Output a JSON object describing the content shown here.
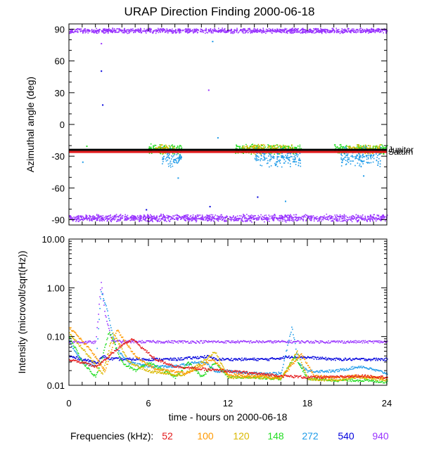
{
  "figure": {
    "title": "URAP Direction Finding  2000-06-18",
    "xlabel": "time - hours on 2000-06-18",
    "legend_label": "Frequencies (kHz):",
    "frequencies": [
      {
        "label": "52",
        "color": "#e41a1c"
      },
      {
        "label": "100",
        "color": "#ff9900"
      },
      {
        "label": "120",
        "color": "#d9b800"
      },
      {
        "label": "148",
        "color": "#22dd22"
      },
      {
        "label": "272",
        "color": "#1e9be8"
      },
      {
        "label": "540",
        "color": "#0000dd"
      },
      {
        "label": "940",
        "color": "#9933ff"
      }
    ]
  },
  "chart_data": [
    {
      "type": "scatter",
      "name": "azimuth",
      "ylabel": "Azimuthal angle (deg)",
      "xlim": [
        0,
        24
      ],
      "ylim": [
        -95,
        95
      ],
      "xticks": [
        0,
        6,
        12,
        18,
        24
      ],
      "yticks": [
        90,
        60,
        30,
        0,
        -30,
        -60,
        -90
      ],
      "reference_lines": [
        {
          "label": "Jupiter",
          "y": -24,
          "color": "#000000"
        },
        {
          "label": "Saturn",
          "y": -26,
          "color": "#e41a1c"
        }
      ],
      "bands": [
        {
          "freq": "940",
          "y_center": 89,
          "y_spread": 2,
          "x_ranges": [
            [
              0,
              24
            ]
          ]
        },
        {
          "freq": "940",
          "y_center": -88,
          "y_spread": 3,
          "x_ranges": [
            [
              0,
              24
            ]
          ]
        },
        {
          "freq": "148",
          "y_center": -23,
          "y_spread": 4,
          "x_ranges": [
            [
              6,
              8.5
            ],
            [
              12.5,
              17.5
            ],
            [
              20,
              24
            ]
          ]
        },
        {
          "freq": "120",
          "y_center": -23,
          "y_spread": 4,
          "x_ranges": [
            [
              6.5,
              8
            ],
            [
              13,
              17
            ],
            [
              21,
              23.5
            ]
          ]
        },
        {
          "freq": "272",
          "y_center": -30,
          "y_spread": 8,
          "x_ranges": [
            [
              7,
              8.5
            ],
            [
              14,
              17.5
            ],
            [
              20.5,
              23.5
            ]
          ]
        }
      ],
      "outliers": [
        {
          "freq": "940",
          "x": 2.4,
          "y": 77
        },
        {
          "freq": "540",
          "x": 2.4,
          "y": 51
        },
        {
          "freq": "540",
          "x": 2.5,
          "y": 19
        },
        {
          "freq": "940",
          "x": 10.5,
          "y": 33
        },
        {
          "freq": "272",
          "x": 10.8,
          "y": 79
        },
        {
          "freq": "148",
          "x": 1.3,
          "y": -20
        },
        {
          "freq": "272",
          "x": 1.0,
          "y": -35
        },
        {
          "freq": "272",
          "x": 8.2,
          "y": -50
        },
        {
          "freq": "540",
          "x": 5.8,
          "y": -80
        },
        {
          "freq": "272",
          "x": 16.3,
          "y": -72
        },
        {
          "freq": "540",
          "x": 14.2,
          "y": -68
        },
        {
          "freq": "540",
          "x": 10.6,
          "y": -77
        },
        {
          "freq": "272",
          "x": 22.2,
          "y": -48
        },
        {
          "freq": "272",
          "x": 11.2,
          "y": -12
        }
      ]
    },
    {
      "type": "line",
      "name": "intensity",
      "ylabel": "Intensity (microvolt/sqrt(Hz))",
      "yscale": "log",
      "xlim": [
        0,
        24
      ],
      "ylim": [
        0.01,
        10
      ],
      "xticks": [
        0,
        6,
        12,
        18,
        24
      ],
      "yticks": [
        10.0,
        1.0,
        0.1,
        0.01
      ],
      "ytick_labels": [
        "10.00",
        "1.00",
        "0.10",
        "0.01"
      ],
      "series": [
        {
          "freq": "940",
          "x": [
            0,
            2,
            2.4,
            2.7,
            3.2,
            4,
            6,
            10,
            12,
            16,
            18,
            22,
            24
          ],
          "y": [
            0.08,
            0.078,
            1.3,
            0.3,
            0.085,
            0.08,
            0.08,
            0.08,
            0.08,
            0.08,
            0.08,
            0.08,
            0.08
          ]
        },
        {
          "freq": "540",
          "x": [
            0,
            1,
            2,
            2.6,
            3,
            4,
            6,
            8,
            10.5,
            11,
            12,
            15,
            17,
            20,
            22,
            24
          ],
          "y": [
            0.04,
            0.035,
            0.03,
            0.04,
            0.036,
            0.035,
            0.035,
            0.035,
            0.04,
            0.035,
            0.035,
            0.035,
            0.04,
            0.035,
            0.035,
            0.035
          ]
        },
        {
          "freq": "272",
          "x": [
            0,
            1,
            2,
            2.4,
            2.8,
            3.5,
            4.5,
            6,
            8,
            9.5,
            10.3,
            11,
            12,
            14,
            16,
            16.8,
            17.3,
            18,
            20,
            22,
            24
          ],
          "y": [
            0.08,
            0.03,
            0.025,
            0.9,
            0.4,
            0.06,
            0.03,
            0.025,
            0.025,
            0.03,
            0.03,
            0.02,
            0.02,
            0.018,
            0.018,
            0.16,
            0.03,
            0.02,
            0.02,
            0.025,
            0.018
          ]
        },
        {
          "freq": "148",
          "x": [
            0,
            1,
            2,
            2.5,
            3,
            4,
            5,
            6,
            8,
            9,
            10,
            11,
            12,
            14,
            16,
            17,
            18,
            20,
            22,
            24
          ],
          "y": [
            0.1,
            0.03,
            0.015,
            0.04,
            0.13,
            0.03,
            0.02,
            0.03,
            0.015,
            0.03,
            0.015,
            0.03,
            0.015,
            0.015,
            0.014,
            0.04,
            0.014,
            0.013,
            0.013,
            0.012
          ]
        },
        {
          "freq": "120",
          "x": [
            0,
            1.5,
            2.5,
            3.3,
            4.5,
            6,
            8.5,
            10,
            11,
            12,
            14,
            16,
            17.2,
            18,
            20,
            22,
            24
          ],
          "y": [
            0.12,
            0.04,
            0.017,
            0.12,
            0.03,
            0.02,
            0.016,
            0.03,
            0.05,
            0.015,
            0.015,
            0.014,
            0.05,
            0.014,
            0.013,
            0.015,
            0.013
          ]
        },
        {
          "freq": "100",
          "x": [
            0,
            1.7,
            2.7,
            3.6,
            5,
            6.5,
            9,
            10.8,
            12,
            14,
            16,
            17.5,
            18.5,
            20,
            22,
            24
          ],
          "y": [
            0.16,
            0.05,
            0.02,
            0.14,
            0.04,
            0.022,
            0.018,
            0.035,
            0.017,
            0.016,
            0.015,
            0.045,
            0.016,
            0.015,
            0.016,
            0.014
          ]
        },
        {
          "freq": "52",
          "x": [
            0,
            1,
            2,
            3,
            4,
            4.8,
            5.5,
            6.5,
            8,
            10,
            12,
            14,
            16,
            18,
            20,
            22,
            24
          ],
          "y": [
            0.035,
            0.03,
            0.025,
            0.04,
            0.07,
            0.09,
            0.06,
            0.035,
            0.025,
            0.022,
            0.02,
            0.018,
            0.016,
            0.015,
            0.015,
            0.016,
            0.015
          ]
        }
      ]
    }
  ]
}
